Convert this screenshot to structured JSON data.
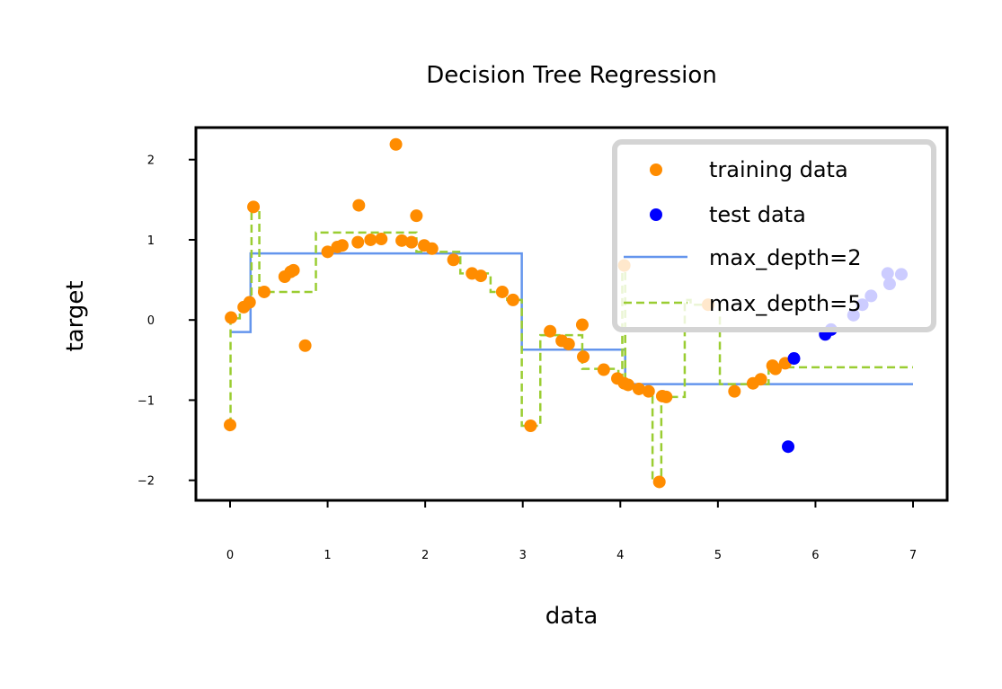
{
  "chart_data": {
    "type": "scatter",
    "title": "Decision Tree Regression",
    "xlabel": "data",
    "ylabel": "target",
    "xlim": [
      -0.35,
      7.35
    ],
    "ylim": [
      -2.25,
      2.4
    ],
    "xticks": [
      0,
      1,
      2,
      3,
      4,
      5,
      6,
      7
    ],
    "yticks": [
      -2,
      -1,
      0,
      1,
      2
    ],
    "xtick_labels": [
      "0",
      "1",
      "2",
      "3",
      "4",
      "5",
      "6",
      "7"
    ],
    "ytick_labels": [
      "−2",
      "−1",
      "0",
      "1",
      "2"
    ],
    "grid": false,
    "legend_position": "top-right",
    "colors": {
      "training": "#ff8c00",
      "test": "#0000ff",
      "depth2": "#6495ed",
      "depth5": "#9acd32",
      "legend_border": "#d4d4d4"
    },
    "series": [
      {
        "name": "training data",
        "kind": "scatter",
        "x": [
          0.0,
          0.01,
          0.14,
          0.2,
          0.24,
          0.35,
          0.56,
          0.62,
          0.65,
          0.77,
          1.0,
          1.1,
          1.15,
          1.31,
          1.32,
          1.44,
          1.55,
          1.7,
          1.76,
          1.86,
          1.91,
          1.99,
          2.07,
          2.29,
          2.48,
          2.57,
          2.79,
          2.9,
          3.08,
          3.28,
          3.4,
          3.47,
          3.61,
          3.62,
          3.83,
          3.97,
          4.04,
          4.04,
          4.08,
          4.19,
          4.29,
          4.4,
          4.43,
          4.47,
          4.9,
          5.17,
          5.36,
          5.44,
          5.56,
          5.59,
          5.69
        ],
        "y": [
          -1.31,
          0.03,
          0.16,
          0.22,
          1.41,
          0.35,
          0.54,
          0.6,
          0.62,
          -0.32,
          0.85,
          0.91,
          0.93,
          0.97,
          1.43,
          1.0,
          1.01,
          2.19,
          0.99,
          0.97,
          1.3,
          0.93,
          0.89,
          0.75,
          0.58,
          0.55,
          0.35,
          0.25,
          -1.32,
          -0.14,
          -0.26,
          -0.3,
          -0.06,
          -0.46,
          -0.62,
          -0.73,
          0.68,
          -0.79,
          -0.81,
          -0.86,
          -0.89,
          -2.02,
          -0.95,
          -0.96,
          0.19,
          -0.89,
          -0.79,
          -0.74,
          -0.57,
          -0.61,
          -0.54
        ]
      },
      {
        "name": "test data",
        "kind": "scatter",
        "x": [
          5.72,
          5.78,
          6.1,
          6.16,
          6.39,
          6.48,
          6.57,
          6.74,
          6.76,
          6.88
        ],
        "y": [
          -1.58,
          -0.48,
          -0.18,
          -0.12,
          0.06,
          0.19,
          0.3,
          0.58,
          0.45,
          0.57
        ]
      },
      {
        "name": "max_depth=2",
        "kind": "step",
        "x": [
          0,
          0.21,
          2.99,
          4.05,
          7.0
        ],
        "y": [
          -0.15,
          0.83,
          -0.37,
          -0.8,
          -0.8
        ]
      },
      {
        "name": "max_depth=5",
        "kind": "step",
        "x": [
          0,
          0.005,
          0.1,
          0.22,
          0.3,
          0.88,
          1.91,
          2.36,
          2.67,
          2.84,
          2.99,
          3.18,
          3.61,
          3.98,
          4.02,
          4.05,
          4.33,
          4.42,
          4.66,
          4.72,
          5.02,
          5.52,
          7.0
        ],
        "y": [
          -1.31,
          0.02,
          0.17,
          1.41,
          0.35,
          1.09,
          0.85,
          0.58,
          0.35,
          0.25,
          -1.32,
          -0.19,
          -0.61,
          -0.75,
          0.68,
          -0.86,
          -2.02,
          -0.96,
          0.25,
          0.19,
          -0.8,
          -0.59,
          -0.59
        ]
      }
    ]
  }
}
